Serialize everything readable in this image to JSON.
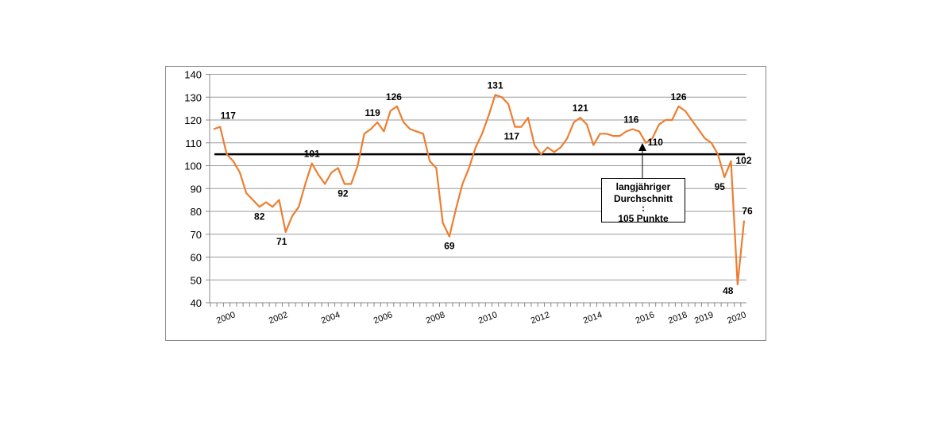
{
  "chart_data": {
    "type": "line",
    "title": "",
    "xlabel": "",
    "ylabel": "",
    "ylim": [
      40,
      140
    ],
    "yticks": [
      40,
      50,
      60,
      70,
      80,
      90,
      100,
      110,
      120,
      130,
      140
    ],
    "grid": true,
    "x_tick_labels": [
      {
        "label": "2000",
        "index": 2
      },
      {
        "label": "2002",
        "index": 10
      },
      {
        "label": "2004",
        "index": 18
      },
      {
        "label": "2006",
        "index": 26
      },
      {
        "label": "2008",
        "index": 34
      },
      {
        "label": "2010",
        "index": 42
      },
      {
        "label": "2012",
        "index": 50
      },
      {
        "label": "2014",
        "index": 58
      },
      {
        "label": "2016",
        "index": 66
      },
      {
        "label": "2018",
        "index": 71
      },
      {
        "label": "2019",
        "index": 75
      },
      {
        "label": "2020",
        "index": 80
      }
    ],
    "series": [
      {
        "color": "#ED7D31",
        "values": [
          116,
          117,
          105,
          102,
          97,
          88,
          85,
          82,
          84,
          82,
          85,
          71,
          78,
          82,
          92,
          101,
          96,
          92,
          97,
          99,
          92,
          92,
          100,
          114,
          116,
          119,
          115,
          124,
          126,
          119,
          116,
          115,
          114,
          102,
          99,
          75,
          69,
          81,
          92,
          99,
          108,
          114,
          122,
          131,
          130,
          127,
          117,
          117,
          121,
          109,
          105,
          108,
          106,
          108,
          112,
          119,
          121,
          118,
          109,
          114,
          114,
          113,
          113,
          115,
          116,
          115,
          110,
          112,
          118,
          120,
          120,
          126,
          124,
          120,
          116,
          112,
          110,
          105,
          95,
          102,
          48,
          76
        ]
      }
    ],
    "data_labels": [
      {
        "index": 1,
        "text": "117"
      },
      {
        "index": 7,
        "text": "82"
      },
      {
        "index": 11,
        "text": "71"
      },
      {
        "index": 15,
        "text": "101"
      },
      {
        "index": 20,
        "text": "92"
      },
      {
        "index": 25,
        "text": "119"
      },
      {
        "index": 28,
        "text": "126"
      },
      {
        "index": 36,
        "text": "69"
      },
      {
        "index": 43,
        "text": "131"
      },
      {
        "index": 46,
        "text": "117"
      },
      {
        "index": 56,
        "text": "121"
      },
      {
        "index": 64,
        "text": "116"
      },
      {
        "index": 66,
        "text": "110"
      },
      {
        "index": 71,
        "text": "126"
      },
      {
        "index": 78,
        "text": "95"
      },
      {
        "index": 79,
        "text": "102"
      },
      {
        "index": 80,
        "text": "48"
      },
      {
        "index": 81,
        "text": "76"
      }
    ],
    "reference_line": {
      "value": 105,
      "color": "#000000"
    },
    "annotation": {
      "line1": "langjähriger",
      "line2": "Durchschnitt",
      "line3": ":",
      "line4": "105 Punkte"
    }
  }
}
